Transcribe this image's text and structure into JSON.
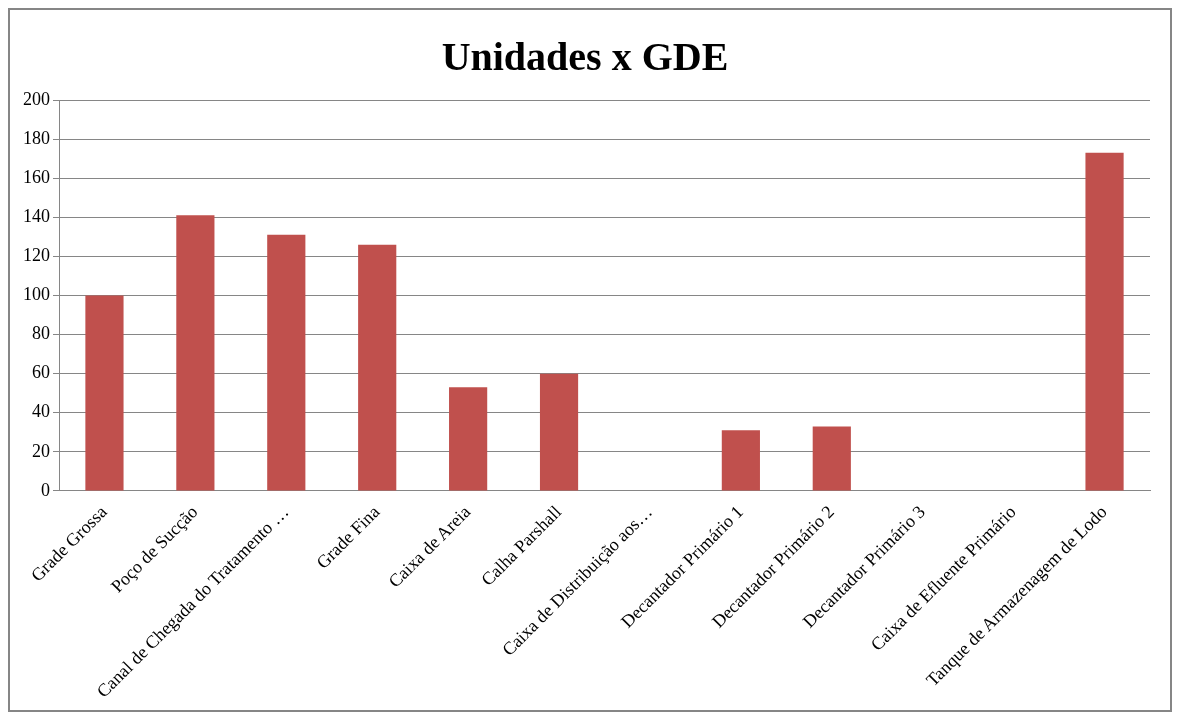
{
  "chart_data": {
    "type": "bar",
    "title": "Unidades x GDE",
    "categories": [
      "Grade Grossa",
      "Poço de Sucção",
      "Canal de Chegada do Tratamento …",
      "Grade Fina",
      "Caixa de Areia",
      "Calha Parshall",
      "Caixa de Distribuição aos…",
      "Decantador Primário 1",
      "Decantador Primário 2",
      "Decantador Primário 3",
      "Caixa de Efluente Primário",
      "Tanque de Armazenagem de Lodo"
    ],
    "values": [
      100,
      141,
      131,
      126,
      53,
      60,
      0,
      31,
      33,
      0,
      0,
      173
    ],
    "color": "#c0504d",
    "ylim": [
      0,
      200
    ],
    "yticks": [
      0,
      20,
      40,
      60,
      80,
      100,
      120,
      140,
      160,
      180,
      200
    ],
    "grid": "y",
    "legend": false
  }
}
